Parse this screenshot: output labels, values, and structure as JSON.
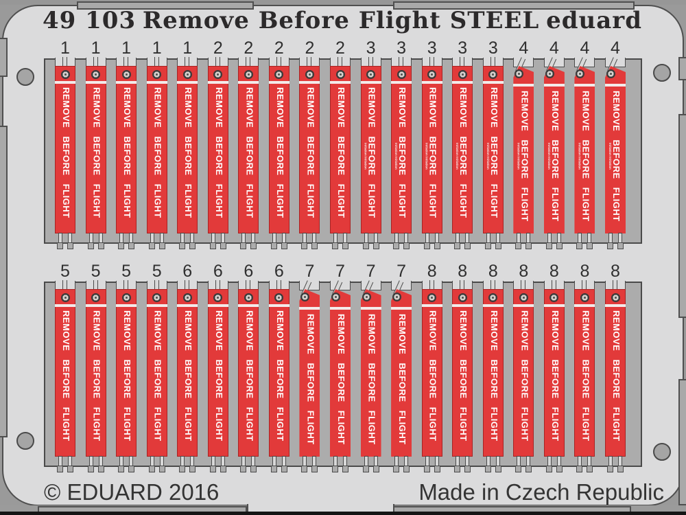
{
  "header": {
    "catalog_number": "49 103",
    "title": "Remove Before Flight STEEL",
    "brand": "eduard"
  },
  "footer": {
    "copyright": "© EDUARD 2016",
    "origin": "Made in Czech Republic"
  },
  "banner": {
    "label": "REMOVE BEFORE FLIGHT",
    "micro_label": "Initiation Initiation"
  },
  "rows": [
    {
      "numbers": [
        "1",
        "1",
        "1",
        "1",
        "1",
        "2",
        "2",
        "2",
        "2",
        "2",
        "3",
        "3",
        "3",
        "3",
        "3",
        "4",
        "4",
        "4",
        "4"
      ]
    },
    {
      "numbers": [
        "5",
        "5",
        "5",
        "5",
        "6",
        "6",
        "6",
        "6",
        "7",
        "7",
        "7",
        "7",
        "8",
        "8",
        "8",
        "8",
        "8",
        "8",
        "8"
      ]
    }
  ],
  "banner_variants": {
    "angled_top_numbers": [
      "4",
      "7"
    ],
    "micro_text_numbers": [
      "3",
      "4"
    ]
  },
  "colors": {
    "flag_red": "#e23a3a",
    "plate_gray": "#acacac",
    "sheet_gray": "#dbdbdc",
    "outline_gray": "#4a4a4a",
    "background_gray": "#9a9a9a",
    "bottom_black": "#151515",
    "label_white": "#ffffff",
    "header_text": "#2c2a2b"
  }
}
